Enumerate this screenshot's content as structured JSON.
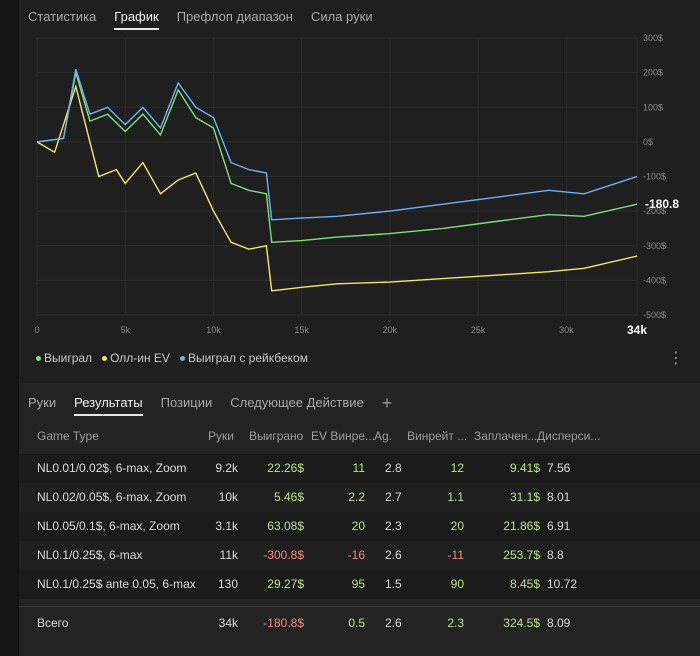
{
  "tabs": [
    "Статистика",
    "График",
    "Префлоп диапазон",
    "Сила руки"
  ],
  "chart": {
    "y_ticks": [
      "300$",
      "200$",
      "100$",
      "0$",
      "-100$",
      "-200$",
      "-300$",
      "-400$",
      "-500$"
    ],
    "x_ticks": [
      "0",
      "5k",
      "10k",
      "15k",
      "20k",
      "25k",
      "30k"
    ],
    "x_end_label": "34k",
    "end_value_label": "-180.8$",
    "colors": {
      "won": "#7ee07e",
      "ev": "#f2e76a",
      "rake": "#6fb2f0"
    }
  },
  "chart_data": {
    "type": "line",
    "xlim": [
      0,
      34000
    ],
    "ylim": [
      -500,
      300
    ],
    "series": [
      {
        "name": "Выиграл",
        "x": [
          0,
          1500,
          2200,
          3000,
          4000,
          5000,
          6000,
          7000,
          8000,
          9000,
          10000,
          11000,
          12000,
          13000,
          13300,
          15000,
          17000,
          20000,
          23000,
          26000,
          29000,
          31000,
          34000
        ],
        "y": [
          0,
          10,
          200,
          60,
          80,
          30,
          80,
          20,
          150,
          70,
          40,
          -120,
          -140,
          -150,
          -290,
          -285,
          -275,
          -265,
          -250,
          -230,
          -210,
          -215,
          -180
        ]
      },
      {
        "name": "Олл-ин EV",
        "x": [
          0,
          1000,
          2200,
          3000,
          3500,
          4500,
          5000,
          6000,
          7000,
          8000,
          9000,
          10000,
          11000,
          12000,
          13000,
          13300,
          15000,
          17000,
          20000,
          23000,
          26000,
          29000,
          31000,
          34000
        ],
        "y": [
          0,
          -30,
          160,
          0,
          -100,
          -80,
          -120,
          -60,
          -150,
          -110,
          -90,
          -200,
          -290,
          -310,
          -300,
          -430,
          -420,
          -410,
          -405,
          -395,
          -385,
          -375,
          -365,
          -330
        ]
      },
      {
        "name": "Выиграл с рейкбеком",
        "x": [
          0,
          1500,
          2200,
          3000,
          4000,
          5000,
          6000,
          7000,
          8000,
          9000,
          10000,
          11000,
          12000,
          13000,
          13300,
          15000,
          17000,
          20000,
          23000,
          26000,
          29000,
          31000,
          34000
        ],
        "y": [
          0,
          10,
          210,
          80,
          100,
          50,
          100,
          40,
          170,
          100,
          70,
          -60,
          -80,
          -90,
          -225,
          -220,
          -215,
          -200,
          -180,
          -160,
          -140,
          -150,
          -100
        ]
      }
    ]
  },
  "legend": [
    {
      "label": "Выиграл",
      "color": "#7ee07e"
    },
    {
      "label": "Олл-ин EV",
      "color": "#f2e76a"
    },
    {
      "label": "Выиграл с рейкбеком",
      "color": "#6fb2f0"
    }
  ],
  "bottom_tabs": [
    "Руки",
    "Результаты",
    "Позиции",
    "Следующее Действие"
  ],
  "table": {
    "headers": [
      "Game Type",
      "Руки",
      "Выиграно",
      "EV Винре...",
      "Ag.",
      "Винрейт ...",
      "Заплачен...",
      "Дисперси..."
    ],
    "rows": [
      [
        "NL0.01/0.02$, 6-max, Zoom",
        "9.2k",
        "22.26$",
        "11",
        "2.8",
        "12",
        "9.41$",
        "7.56"
      ],
      [
        "NL0.02/0.05$, 6-max, Zoom",
        "10k",
        "5.46$",
        "2.2",
        "2.7",
        "1.1",
        "31.1$",
        "8.01"
      ],
      [
        "NL0.05/0.1$, 6-max, Zoom",
        "3.1k",
        "63.08$",
        "20",
        "2.3",
        "20",
        "21.86$",
        "6.91"
      ],
      [
        "NL0.1/0.25$, 6-max",
        "11k",
        "-300.8$",
        "-16",
        "2.6",
        "-11",
        "253.7$",
        "8.8"
      ],
      [
        "NL0.1/0.25$ ante 0.05, 6-max",
        "130",
        "29.27$",
        "95",
        "1.5",
        "90",
        "8.45$",
        "10.72"
      ]
    ],
    "total": [
      "Всего",
      "34k",
      "-180.8$",
      "0.5",
      "2.6",
      "2.3",
      "324.5$",
      "8.09"
    ]
  }
}
